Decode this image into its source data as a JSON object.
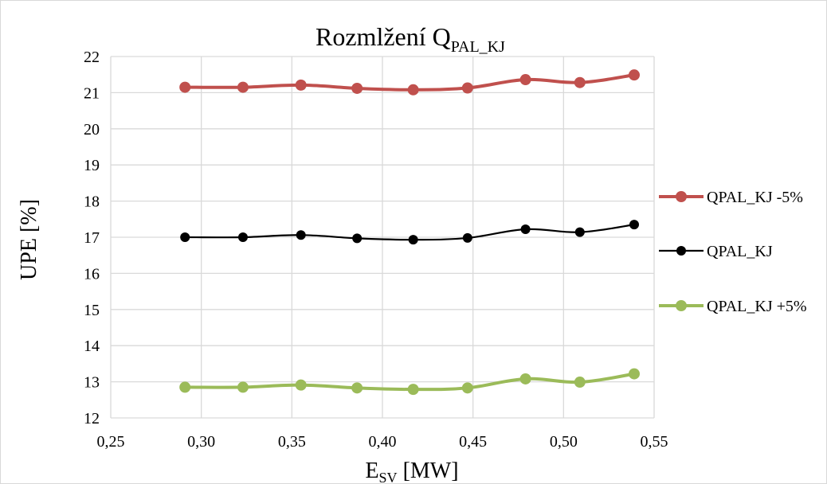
{
  "chart_data": {
    "type": "line",
    "title": {
      "main": "Rozmlžení Q",
      "sub": "PAL_KJ"
    },
    "xlabel": {
      "main": "E",
      "sub": "SV",
      "rest": " [MW]"
    },
    "ylabel": "UPE [%]",
    "xlim": [
      0.25,
      0.55
    ],
    "ylim": [
      12,
      22
    ],
    "x_ticks": [
      0.25,
      0.3,
      0.35,
      0.4,
      0.45,
      0.5,
      0.55
    ],
    "x_tick_labels": [
      "0,25",
      "0,30",
      "0,35",
      "0,40",
      "0,45",
      "0,50",
      "0,55"
    ],
    "y_ticks": [
      12,
      13,
      14,
      15,
      16,
      17,
      18,
      19,
      20,
      21,
      22
    ],
    "y_tick_labels": [
      "12",
      "13",
      "14",
      "15",
      "16",
      "17",
      "18",
      "19",
      "20",
      "21",
      "22"
    ],
    "grid": true,
    "smooth": true,
    "legend_position": "right",
    "x": [
      0.291,
      0.323,
      0.355,
      0.386,
      0.417,
      0.447,
      0.479,
      0.509,
      0.539
    ],
    "series": [
      {
        "name": "QPAL_KJ -5%",
        "color": "#c0504d",
        "values": [
          21.15,
          21.15,
          21.21,
          21.12,
          21.08,
          21.13,
          21.36,
          21.28,
          21.49
        ]
      },
      {
        "name": "QPAL_KJ",
        "color": "#000000",
        "values": [
          17.0,
          17.0,
          17.06,
          16.97,
          16.93,
          16.98,
          17.22,
          17.14,
          17.35
        ]
      },
      {
        "name": "QPAL_KJ +5%",
        "color": "#9bbb59",
        "values": [
          12.85,
          12.85,
          12.91,
          12.83,
          12.79,
          12.83,
          13.08,
          12.99,
          13.22
        ]
      }
    ]
  }
}
